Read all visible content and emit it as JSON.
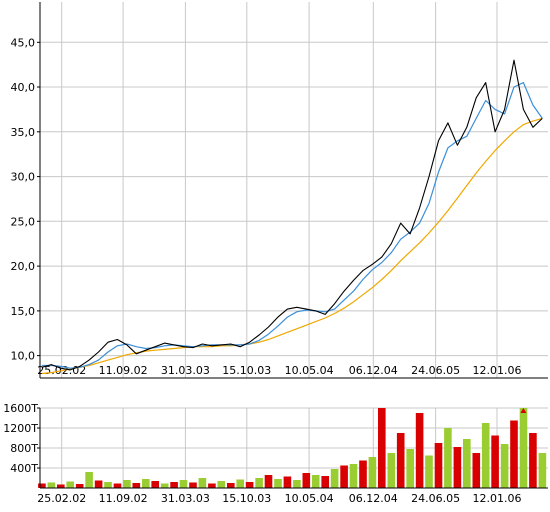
{
  "chart_data": [
    {
      "type": "line",
      "title": "",
      "xlabel": "",
      "ylabel": "",
      "x_tick_labels": [
        "25.02.02",
        "11.09.02",
        "31.03.03",
        "15.10.03",
        "10.05.04",
        "06.12.04",
        "24.06.05",
        "12.01.06"
      ],
      "y_tick_labels": [
        "10,0",
        "15,0",
        "20,0",
        "25,0",
        "30,0",
        "35,0",
        "40,0",
        "45,0"
      ],
      "y_ticks": [
        10,
        15,
        20,
        25,
        30,
        35,
        40,
        45
      ],
      "ylim": [
        7.5,
        49.5
      ],
      "x_tick_positions": [
        2.1,
        8.6,
        15.2,
        21.7,
        28.3,
        35.1,
        41.7,
        48.2
      ],
      "xlim": [
        -0.2,
        53.6
      ],
      "grid": true,
      "series": [
        {
          "color": "#000000",
          "x": [
            0,
            1,
            2,
            3,
            4,
            5,
            6,
            7,
            8,
            9,
            10,
            11,
            12,
            13,
            14,
            15,
            16,
            17,
            18,
            19,
            20,
            21,
            22,
            23,
            24,
            25,
            26,
            27,
            28,
            29,
            30,
            31,
            32,
            33,
            34,
            35,
            36,
            37,
            38,
            39,
            40,
            41,
            42,
            43,
            44,
            45,
            46,
            47,
            48,
            49,
            50,
            51,
            52,
            53
          ],
          "values": [
            8.7,
            9.0,
            8.6,
            8.4,
            8.8,
            9.5,
            10.4,
            11.5,
            11.8,
            11.2,
            10.2,
            10.6,
            11.0,
            11.4,
            11.2,
            11.0,
            10.9,
            11.3,
            11.1,
            11.2,
            11.3,
            11.0,
            11.5,
            12.3,
            13.2,
            14.3,
            15.2,
            15.4,
            15.2,
            15.0,
            14.6,
            15.8,
            17.2,
            18.4,
            19.5,
            20.2,
            21.0,
            22.5,
            24.8,
            23.6,
            26.5,
            30.0,
            34.0,
            36.0,
            33.5,
            35.5,
            38.8,
            40.5,
            35.0,
            37.5,
            43.0,
            37.5,
            35.5,
            36.5
          ]
        },
        {
          "color": "#3a8fd9",
          "x": [
            0,
            1,
            2,
            3,
            4,
            5,
            6,
            7,
            8,
            9,
            10,
            11,
            12,
            13,
            14,
            15,
            16,
            17,
            18,
            19,
            20,
            21,
            22,
            23,
            24,
            25,
            26,
            27,
            28,
            29,
            30,
            31,
            32,
            33,
            34,
            35,
            36,
            37,
            38,
            39,
            40,
            41,
            42,
            43,
            44,
            45,
            46,
            47,
            48,
            49,
            50,
            51,
            52,
            53
          ],
          "values": [
            8.9,
            8.9,
            8.8,
            8.6,
            8.7,
            9.0,
            9.5,
            10.4,
            11.1,
            11.3,
            11.0,
            10.8,
            10.9,
            11.1,
            11.2,
            11.1,
            11.0,
            11.1,
            11.2,
            11.2,
            11.2,
            11.2,
            11.3,
            11.7,
            12.4,
            13.3,
            14.3,
            14.9,
            15.1,
            15.0,
            14.9,
            15.2,
            16.2,
            17.2,
            18.5,
            19.6,
            20.4,
            21.5,
            23.0,
            23.8,
            24.8,
            27.0,
            30.5,
            33.2,
            34.0,
            34.5,
            36.5,
            38.5,
            37.5,
            37.0,
            40.0,
            40.5,
            38.0,
            36.5
          ]
        },
        {
          "color": "#f0a800",
          "x": [
            0,
            1,
            2,
            3,
            4,
            5,
            6,
            7,
            8,
            9,
            10,
            11,
            12,
            13,
            14,
            15,
            16,
            17,
            18,
            19,
            20,
            21,
            22,
            23,
            24,
            25,
            26,
            27,
            28,
            29,
            30,
            31,
            32,
            33,
            34,
            35,
            36,
            37,
            38,
            39,
            40,
            41,
            42,
            43,
            44,
            45,
            46,
            47,
            48,
            49,
            50,
            51,
            52,
            53
          ],
          "values": [
            8.0,
            8.1,
            8.3,
            8.5,
            8.7,
            8.9,
            9.2,
            9.5,
            9.8,
            10.1,
            10.3,
            10.5,
            10.6,
            10.7,
            10.8,
            10.9,
            11.0,
            11.0,
            11.0,
            11.1,
            11.1,
            11.2,
            11.3,
            11.5,
            11.8,
            12.2,
            12.6,
            13.0,
            13.4,
            13.8,
            14.2,
            14.7,
            15.3,
            16.0,
            16.8,
            17.6,
            18.5,
            19.5,
            20.6,
            21.6,
            22.6,
            23.7,
            24.9,
            26.2,
            27.6,
            29.0,
            30.4,
            31.7,
            32.9,
            34.0,
            35.0,
            35.8,
            36.2,
            36.5
          ]
        }
      ]
    },
    {
      "type": "bar",
      "title": "",
      "xlabel": "",
      "ylabel": "",
      "x_tick_labels": [
        "25.02.02",
        "11.09.02",
        "31.03.03",
        "15.10.03",
        "10.05.04",
        "06.12.04",
        "24.06.05",
        "12.01.06"
      ],
      "y_tick_labels": [
        "400T",
        "800T",
        "1200T",
        "1600T"
      ],
      "y_ticks": [
        400,
        800,
        1200,
        1600
      ],
      "ylim": [
        0,
        1600
      ],
      "x_tick_positions": [
        2.1,
        8.6,
        15.2,
        21.7,
        28.3,
        35.1,
        41.7,
        48.2
      ],
      "xlim": [
        -0.2,
        53.6
      ],
      "grid": true,
      "series": [
        {
          "name": "",
          "colors": [
            "#d80000",
            "#9acd32"
          ],
          "x": [
            0,
            1,
            2,
            3,
            4,
            5,
            6,
            7,
            8,
            9,
            10,
            11,
            12,
            13,
            14,
            15,
            16,
            17,
            18,
            19,
            20,
            21,
            22,
            23,
            24,
            25,
            26,
            27,
            28,
            29,
            30,
            31,
            32,
            33,
            34,
            35,
            36,
            37,
            38,
            39,
            40,
            41,
            42,
            43,
            44,
            45,
            46,
            47,
            48,
            49,
            50,
            51,
            52,
            53
          ],
          "values": [
            90,
            110,
            70,
            130,
            80,
            320,
            150,
            120,
            90,
            160,
            100,
            180,
            140,
            90,
            120,
            160,
            110,
            200,
            90,
            140,
            100,
            170,
            120,
            200,
            260,
            180,
            230,
            160,
            300,
            260,
            240,
            380,
            450,
            480,
            550,
            620,
            1600,
            700,
            1100,
            780,
            1500,
            650,
            900,
            1200,
            820,
            980,
            700,
            1300,
            1050,
            880,
            1350,
            1600,
            1100,
            700
          ]
        }
      ],
      "annotations": [
        "overflow-arrow",
        "overflow-arrow"
      ]
    }
  ]
}
